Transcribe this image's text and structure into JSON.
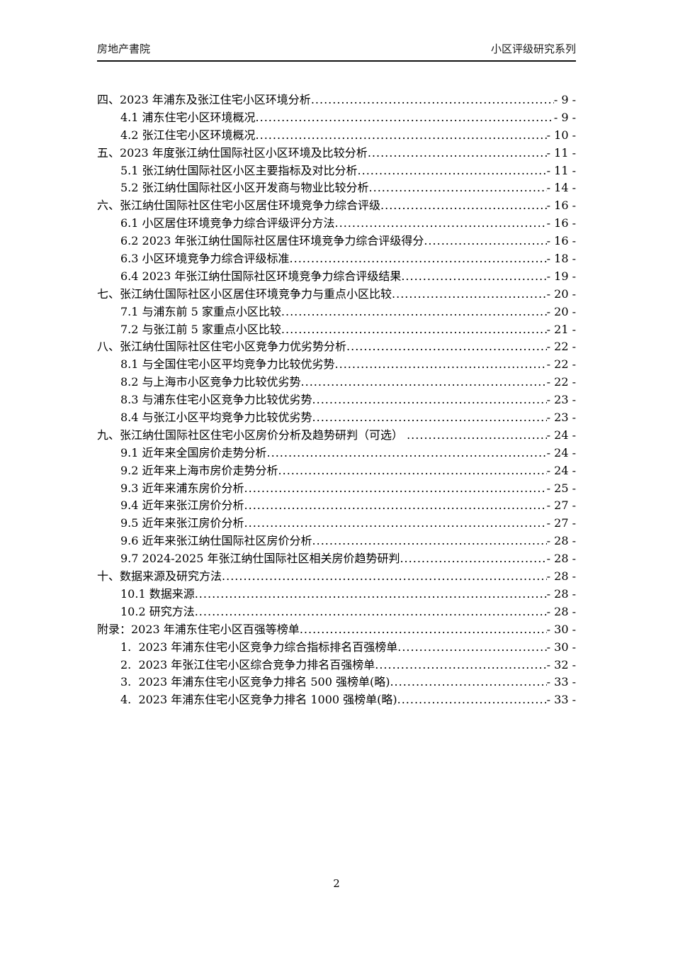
{
  "header": {
    "left": "房地产書院",
    "right": "小区评级研究系列"
  },
  "toc": {
    "entries": [
      {
        "level": 1,
        "title": "四、2023 年浦东及张江住宅小区环境分析",
        "page": "- 9 -"
      },
      {
        "level": 2,
        "title": "4.1 浦东住宅小区环境概况",
        "page": "- 9 -"
      },
      {
        "level": 2,
        "title": "4.2 张江住宅小区环境概况",
        "page": "- 10 -"
      },
      {
        "level": 1,
        "title": "五、2023 年度张江纳仕国际社区小区环境及比较分析",
        "page": "- 11 -"
      },
      {
        "level": 2,
        "title": "5.1 张江纳仕国际社区小区主要指标及对比分析",
        "page": "- 11 -"
      },
      {
        "level": 2,
        "title": "5.2 张江纳仕国际社区小区开发商与物业比较分析",
        "page": "- 14 -"
      },
      {
        "level": 1,
        "title": "六、张江纳仕国际社区住宅小区居住环境竞争力综合评级",
        "page": "- 16 -"
      },
      {
        "level": 2,
        "title": "6.1 小区居住环境竞争力综合评级评分方法",
        "page": "- 16 -"
      },
      {
        "level": 2,
        "title": "6.2 2023 年张江纳仕国际社区居住环境竞争力综合评级得分",
        "page": "- 16 -"
      },
      {
        "level": 2,
        "title": "6.3 小区环境竞争力综合评级标准",
        "page": "- 18 -"
      },
      {
        "level": 2,
        "title": "6.4 2023 年张江纳仕国际社区环境竞争力综合评级结果",
        "page": "- 19 -"
      },
      {
        "level": 1,
        "title": "七、张江纳仕国际社区小区居住环境竞争力与重点小区比较",
        "page": "- 20 -"
      },
      {
        "level": 2,
        "title": "7.1 与浦东前 5 家重点小区比较",
        "page": "- 20 -"
      },
      {
        "level": 2,
        "title": "7.2 与张江前 5 家重点小区比较",
        "page": "- 21 -"
      },
      {
        "level": 1,
        "title": "八、张江纳仕国际社区住宅小区竞争力优劣势分析",
        "page": "- 22 -"
      },
      {
        "level": 2,
        "title": "8.1 与全国住宅小区平均竞争力比较优劣势",
        "page": "- 22 -"
      },
      {
        "level": 2,
        "title": "8.2 与上海市小区竞争力比较优劣势",
        "page": "- 22 -"
      },
      {
        "level": 2,
        "title": "8.3 与浦东住宅小区竞争力比较优劣势",
        "page": "- 23 -"
      },
      {
        "level": 2,
        "title": "8.4 与张江小区平均竞争力比较优劣势",
        "page": "- 23 -"
      },
      {
        "level": 1,
        "title": "九、张江纳仕国际社区住宅小区房价分析及趋势研判（可选） ",
        "page": "- 24 -"
      },
      {
        "level": 2,
        "title": "9.1 近年来全国房价走势分析",
        "page": "- 24 -"
      },
      {
        "level": 2,
        "title": "9.2 近年来上海市房价走势分析",
        "page": "- 24 -"
      },
      {
        "level": 2,
        "title": "9.3 近年来浦东房价分析",
        "page": "- 25 -"
      },
      {
        "level": 2,
        "title": "9.4 近年来张江房价分析",
        "page": "- 27 -"
      },
      {
        "level": 2,
        "title": "9.5 近年来张江房价分析",
        "page": "- 27 -"
      },
      {
        "level": 2,
        "title": "9.6 近年来张江纳仕国际社区房价分析",
        "page": "- 28 -"
      },
      {
        "level": 2,
        "title": "9.7 2024-2025 年张江纳仕国际社区相关房价趋势研判",
        "page": "- 28 -"
      },
      {
        "level": 1,
        "title": "十、数据来源及研究方法",
        "page": "- 28 -"
      },
      {
        "level": 2,
        "title": "10.1 数据来源",
        "page": "- 28 -"
      },
      {
        "level": 2,
        "title": "10.2 研究方法",
        "page": "- 28 -"
      },
      {
        "level": 1,
        "title": "附录：2023 年浦东住宅小区百强等榜单",
        "page": "- 30 -"
      },
      {
        "level": 2,
        "title": "1.  2023 年浦东住宅小区竞争力综合指标排名百强榜单",
        "page": "- 30 -"
      },
      {
        "level": 2,
        "title": "2.  2023 年张江住宅小区综合竞争力排名百强榜单",
        "page": "- 32 -"
      },
      {
        "level": 2,
        "title": "3.  2023 年浦东住宅小区竞争力排名 500 强榜单(略)",
        "page": "- 33 -"
      },
      {
        "level": 2,
        "title": "4.  2023 年浦东住宅小区竞争力排名 1000 强榜单(略)",
        "page": "- 33 -"
      }
    ]
  },
  "footer": {
    "page_number": "2"
  }
}
